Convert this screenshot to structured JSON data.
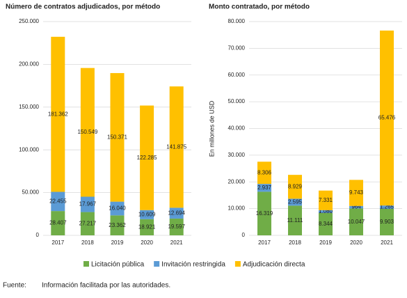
{
  "chart_data": [
    {
      "type": "bar",
      "stacked": true,
      "title": "Número de contratos adjudicados, por método",
      "categories": [
        "2017",
        "2018",
        "2019",
        "2020",
        "2021"
      ],
      "ylim": [
        0,
        250000
      ],
      "yticks": [
        0,
        {
          "value": 50000,
          "label": "50.000"
        },
        {
          "value": 100000,
          "label": "100.000"
        },
        {
          "value": 150000,
          "label": "150.000"
        },
        {
          "value": 200000,
          "label": "200.000"
        },
        {
          "value": 250000,
          "label": "250.000"
        }
      ],
      "series": [
        {
          "name": "Licitación pública",
          "color": "#70ad47",
          "values": [
            28407,
            27217,
            23362,
            18921,
            19597
          ],
          "value_labels": [
            "28.407",
            "27.217",
            "23.362",
            "18.921",
            "19.597"
          ]
        },
        {
          "name": "Invitación restringida",
          "color": "#5b9bd5",
          "values": [
            22455,
            17967,
            16040,
            10609,
            12694
          ],
          "value_labels": [
            "22.455",
            "17.967",
            "16.040",
            "10.609",
            "12.694"
          ]
        },
        {
          "name": "Adjudicación directa",
          "color": "#ffc000",
          "values": [
            181362,
            150549,
            150371,
            122285,
            141875
          ],
          "value_labels": [
            "181.362",
            "150.549",
            "150.371",
            "122.285",
            "141.875"
          ]
        }
      ]
    },
    {
      "type": "bar",
      "stacked": true,
      "title": "Monto contratado, por método",
      "y_label": "En millones de USD",
      "categories": [
        "2017",
        "2018",
        "2019",
        "2020",
        "2021"
      ],
      "ylim": [
        0,
        80000
      ],
      "yticks": [
        0,
        {
          "value": 10000,
          "label": "10.000"
        },
        {
          "value": 20000,
          "label": "20.000"
        },
        {
          "value": 30000,
          "label": "30.000"
        },
        {
          "value": 40000,
          "label": "40.000"
        },
        {
          "value": 50000,
          "label": "50.000"
        },
        {
          "value": 60000,
          "label": "60.000"
        },
        {
          "value": 70000,
          "label": "70.000"
        },
        {
          "value": 80000,
          "label": "80.000"
        }
      ],
      "series": [
        {
          "color": "#70ad47",
          "values": [
            16319,
            11111,
            8344,
            10047,
            9903
          ],
          "value_labels": [
            "16.319",
            "11.111",
            "8.344",
            "10.047",
            "9.903"
          ]
        },
        {
          "color": "#5b9bd5",
          "values": [
            2937,
            2595,
            1080,
            964,
            1265
          ],
          "value_labels": [
            "2.937",
            "2.595",
            "1.080",
            "964",
            "1.265"
          ]
        },
        {
          "color": "#ffc000",
          "values": [
            8306,
            8929,
            7331,
            9743,
            65476
          ],
          "value_labels": [
            "8.306",
            "8.929",
            "7.331",
            "9.743",
            "65.476"
          ]
        }
      ]
    }
  ],
  "footnote": {
    "label": "Fuente:",
    "text": "Información facilitada por las autoridades."
  }
}
